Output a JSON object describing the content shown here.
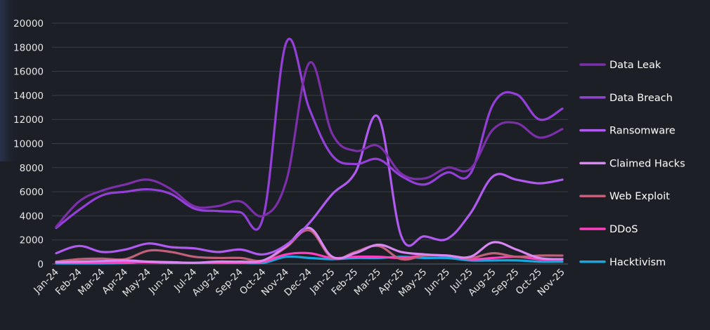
{
  "chart_data": {
    "type": "line",
    "title": "",
    "xlabel": "",
    "ylabel": "",
    "ylim": [
      0,
      20000
    ],
    "yticks": [
      0,
      2000,
      4000,
      6000,
      8000,
      10000,
      12000,
      14000,
      16000,
      18000,
      20000
    ],
    "grid": true,
    "legend_position": "right",
    "categories": [
      "Jan-24",
      "Feb-24",
      "Mar-24",
      "Apr-24",
      "May-24",
      "Jun-24",
      "Jul-24",
      "Aug-24",
      "Sep-24",
      "Oct-24",
      "Nov-24",
      "Dec-24",
      "Jan-25",
      "Feb-25",
      "Mar-25",
      "Apr-25",
      "May-25",
      "Jun-25",
      "Jul-25",
      "Aug-25",
      "Sep-25",
      "Oct-25",
      "Nov-25"
    ],
    "series": [
      {
        "name": "Data Leak",
        "color": "#7b2fa8",
        "values": [
          3100,
          5200,
          6100,
          6600,
          7000,
          6200,
          4800,
          4800,
          5200,
          4000,
          6900,
          16700,
          10800,
          9400,
          9800,
          7500,
          7100,
          8000,
          7900,
          11200,
          11700,
          10500,
          11200
        ]
      },
      {
        "name": "Data Breach",
        "color": "#9440d8",
        "values": [
          3000,
          4500,
          5700,
          6000,
          6200,
          5800,
          4600,
          4400,
          4300,
          3900,
          18400,
          12900,
          9000,
          8300,
          8700,
          7300,
          6600,
          7600,
          7500,
          13300,
          14100,
          12000,
          12900
        ]
      },
      {
        "name": "Ransomware",
        "color": "#b05af0",
        "values": [
          900,
          1500,
          1000,
          1200,
          1700,
          1400,
          1300,
          1000,
          1200,
          800,
          1600,
          3400,
          5800,
          7600,
          12200,
          2300,
          2300,
          2100,
          4200,
          7300,
          7000,
          6700,
          7000
        ]
      },
      {
        "name": "Claimed Hacks",
        "color": "#d987f2",
        "values": [
          150,
          200,
          250,
          300,
          200,
          150,
          100,
          200,
          200,
          300,
          1500,
          3000,
          600,
          900,
          1600,
          1000,
          800,
          700,
          600,
          1800,
          1200,
          500,
          400
        ]
      },
      {
        "name": "Web Exploit",
        "color": "#c0607a",
        "values": [
          200,
          400,
          450,
          400,
          1100,
          1000,
          600,
          500,
          500,
          300,
          1400,
          2800,
          500,
          1000,
          1500,
          400,
          700,
          700,
          500,
          900,
          600,
          700,
          700
        ]
      },
      {
        "name": "DDoS",
        "color": "#ff3fbf",
        "values": [
          100,
          100,
          100,
          150,
          150,
          100,
          100,
          100,
          100,
          200,
          800,
          900,
          500,
          600,
          600,
          500,
          700,
          700,
          400,
          500,
          600,
          400,
          400
        ]
      },
      {
        "name": "Hacktivism",
        "color": "#17a8e0",
        "values": [
          50,
          50,
          50,
          80,
          200,
          100,
          100,
          150,
          100,
          100,
          600,
          500,
          400,
          500,
          500,
          600,
          500,
          500,
          300,
          300,
          300,
          200,
          200
        ]
      }
    ]
  }
}
